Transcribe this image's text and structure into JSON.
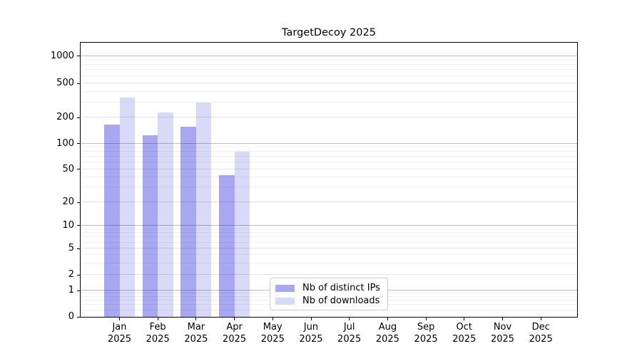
{
  "window": {
    "background": "#ffffff"
  },
  "chart_data": {
    "type": "bar",
    "title": "TargetDecoy 2025",
    "categories": [
      "Jan 2025",
      "Feb 2025",
      "Mar 2025",
      "Apr 2025",
      "May 2025",
      "Jun 2025",
      "Jul 2025",
      "Aug 2025",
      "Sep 2025",
      "Oct 2025",
      "Nov 2025",
      "Dec 2025"
    ],
    "series": [
      {
        "name": "Nb of distinct IPs",
        "color": "#a8a8f2",
        "values": [
          165,
          125,
          157,
          42,
          0,
          0,
          0,
          0,
          0,
          0,
          0,
          0
        ]
      },
      {
        "name": "Nb of downloads",
        "color": "#d9d9f8",
        "values": [
          340,
          230,
          300,
          81,
          0,
          0,
          0,
          0,
          0,
          0,
          0,
          0
        ]
      }
    ],
    "xlabel": "",
    "ylabel": "",
    "yscale": "symlog",
    "y_ticks": [
      0,
      1,
      2,
      5,
      10,
      20,
      50,
      100,
      200,
      500,
      1000
    ],
    "ylim": [
      0,
      1400
    ],
    "grid": true,
    "legend_position": "lower center"
  },
  "colors": {
    "axis": "#000000",
    "grid_major": "#bfbfbf",
    "grid_minor": "#efefef",
    "legend_border": "#cccccc"
  }
}
